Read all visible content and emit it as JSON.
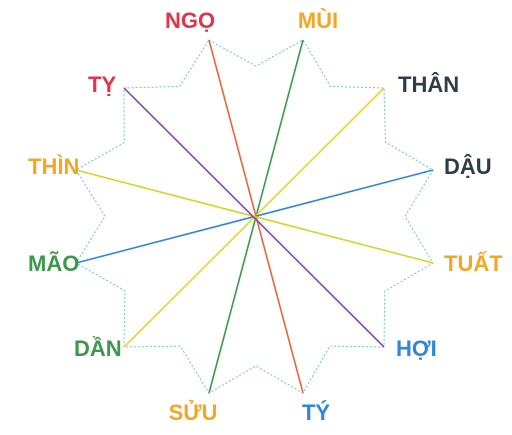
{
  "branches": [
    {
      "id": "ngo",
      "label": "NGỌ",
      "color": "#e3344a"
    },
    {
      "id": "mui",
      "label": "MÙI",
      "color": "#f5a623"
    },
    {
      "id": "than",
      "label": "THÂN",
      "color": "#2f3d4a"
    },
    {
      "id": "dau",
      "label": "DẬU",
      "color": "#2f3d4a"
    },
    {
      "id": "tuat",
      "label": "TUẤT",
      "color": "#f5a623"
    },
    {
      "id": "hoi",
      "label": "HỢI",
      "color": "#2e86de"
    },
    {
      "id": "ty-ti",
      "label": "TÝ",
      "color": "#2e86de"
    },
    {
      "id": "suu",
      "label": "SỬU",
      "color": "#f5a623"
    },
    {
      "id": "dan",
      "label": "DẦN",
      "color": "#3a9a4a"
    },
    {
      "id": "mao",
      "label": "MÃO",
      "color": "#3a9a4a"
    },
    {
      "id": "thin",
      "label": "THÌN",
      "color": "#f5a623"
    },
    {
      "id": "ty",
      "label": "TỴ",
      "color": "#e3344a"
    }
  ],
  "connections": [
    {
      "from": "ngo",
      "to": "ty-ti",
      "color": "#e8663a"
    },
    {
      "from": "mui",
      "to": "suu",
      "color": "#3a9a4a"
    },
    {
      "from": "than",
      "to": "dan",
      "color": "#f2cf2a"
    },
    {
      "from": "dau",
      "to": "mao",
      "color": "#2e86de"
    },
    {
      "from": "tuat",
      "to": "thin",
      "color": "#d4d42a"
    },
    {
      "from": "hoi",
      "to": "ty",
      "color": "#8e44ad"
    }
  ],
  "outline_color": "#6fc3c9"
}
